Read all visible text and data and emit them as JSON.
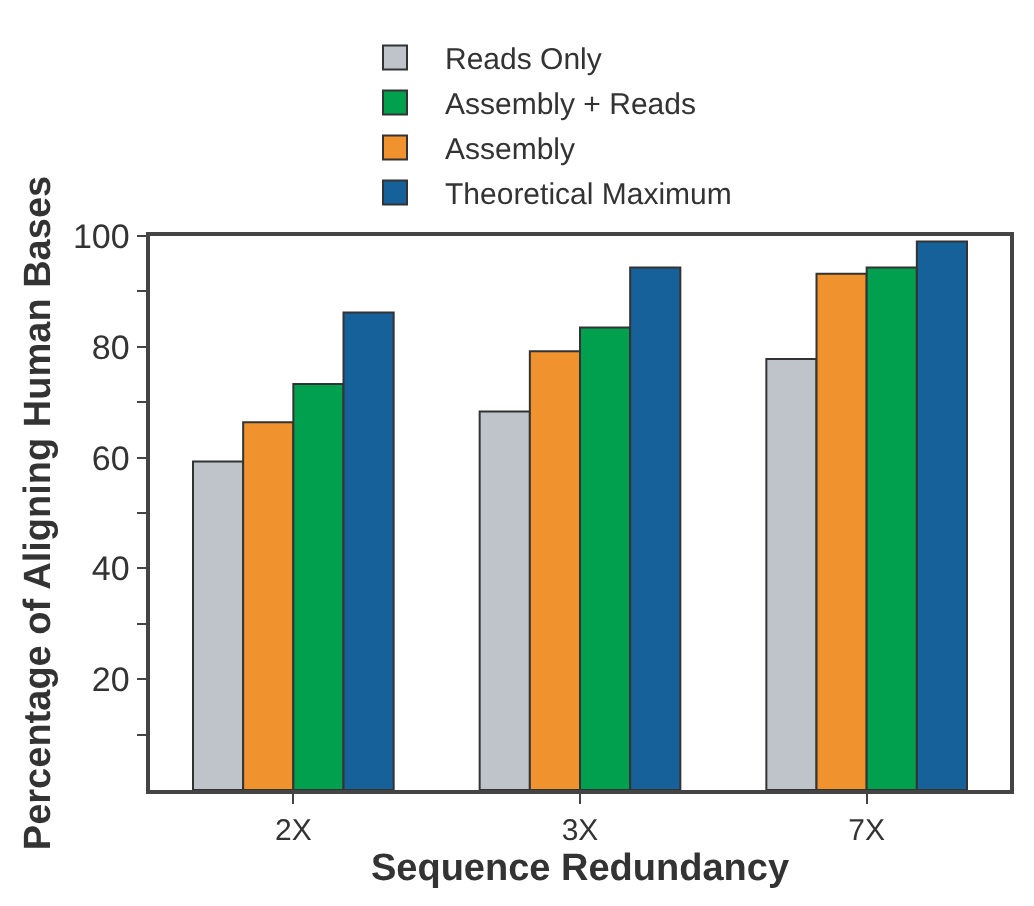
{
  "chart_data": {
    "type": "bar",
    "xlabel": "Sequence Redundancy",
    "ylabel": "Percentage of Aligning Human Bases",
    "categories": [
      "2X",
      "3X",
      "7X"
    ],
    "series": [
      {
        "name": "Reads Only",
        "color": "#bfc4cb",
        "values": [
          59.3,
          68.3,
          77.8
        ]
      },
      {
        "name": "Assembly",
        "color": "#f0922e",
        "values": [
          66.4,
          79.2,
          93.2
        ]
      },
      {
        "name": "Assembly + Reads",
        "color": "#00a04f",
        "values": [
          73.3,
          83.5,
          94.3
        ]
      },
      {
        "name": "Theoretical Maximum",
        "color": "#17619b",
        "values": [
          86.2,
          94.3,
          99.0
        ]
      }
    ],
    "ylim": [
      0,
      100
    ],
    "yticks": [
      {
        "value": 10,
        "label": null
      },
      20,
      {
        "value": 30,
        "label": null
      },
      40,
      {
        "value": 50,
        "label": null
      },
      60,
      {
        "value": 70,
        "label": null
      },
      80,
      {
        "value": 90,
        "label": null
      },
      100
    ],
    "grid": false,
    "legend": "top"
  }
}
